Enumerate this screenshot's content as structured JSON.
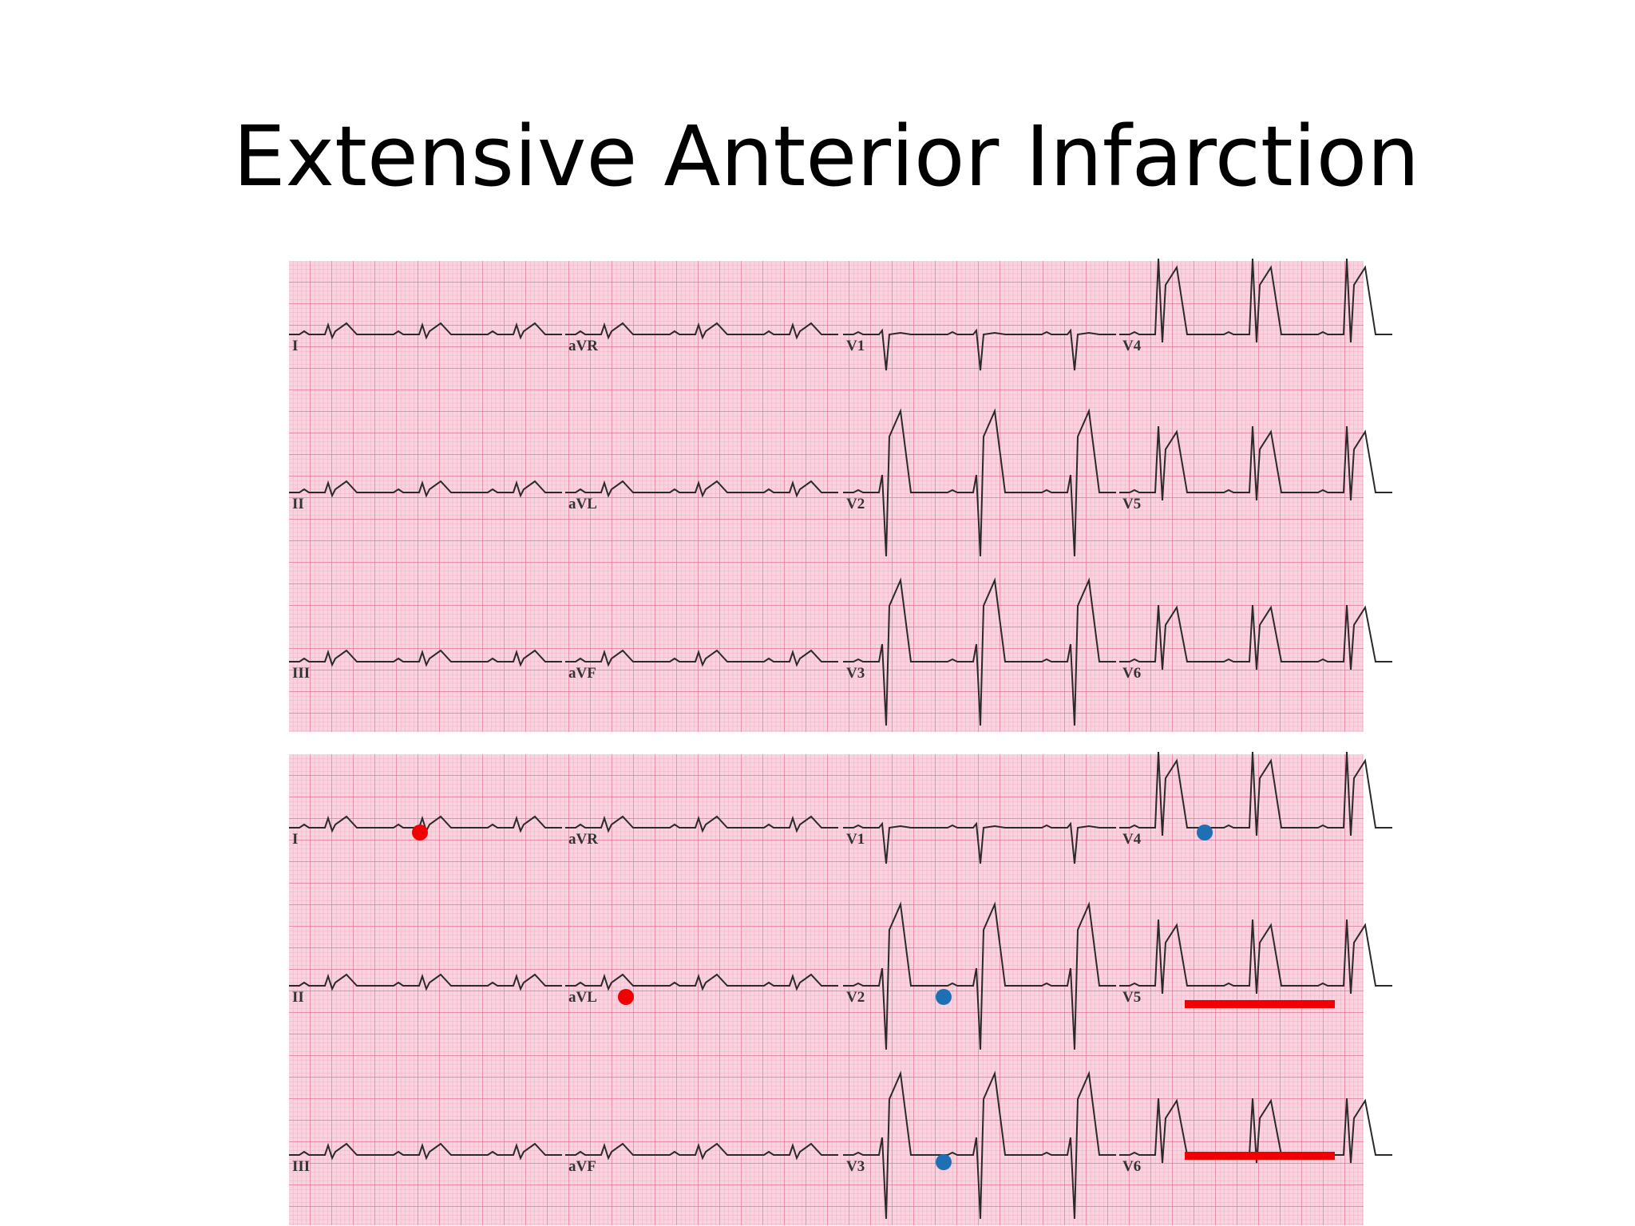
{
  "title": "Extensive Anterior Infarction",
  "panels": [
    {
      "leads": [
        [
          "I",
          "aVR",
          "V1",
          "V4"
        ],
        [
          "II",
          "aVL",
          "V2",
          "V5"
        ],
        [
          "III",
          "aVF",
          "V3",
          "V6"
        ]
      ]
    },
    {
      "leads": [
        [
          "I",
          "aVR",
          "V1",
          "V4"
        ],
        [
          "II",
          "aVL",
          "V2",
          "V5"
        ],
        [
          "III",
          "aVF",
          "V3",
          "V6"
        ]
      ]
    }
  ]
}
